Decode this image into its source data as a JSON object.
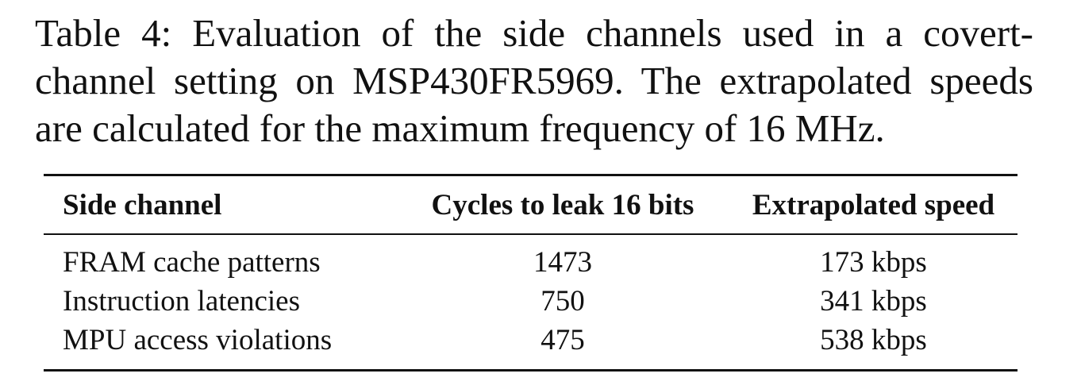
{
  "caption": {
    "lines": [
      "Table 4: Evaluation of the side channels used in a covert-",
      "channel setting on MSP430FR5969. The extrapolated speeds",
      "are calculated for the maximum frequency of 16 MHz."
    ]
  },
  "table": {
    "headers": [
      "Side channel",
      "Cycles to leak 16 bits",
      "Extrapolated speed"
    ],
    "rows": [
      [
        "FRAM cache patterns",
        "1473",
        "173 kbps"
      ],
      [
        "Instruction latencies",
        "750",
        "341 kbps"
      ],
      [
        "MPU access violations",
        "475",
        "538 kbps"
      ]
    ]
  }
}
